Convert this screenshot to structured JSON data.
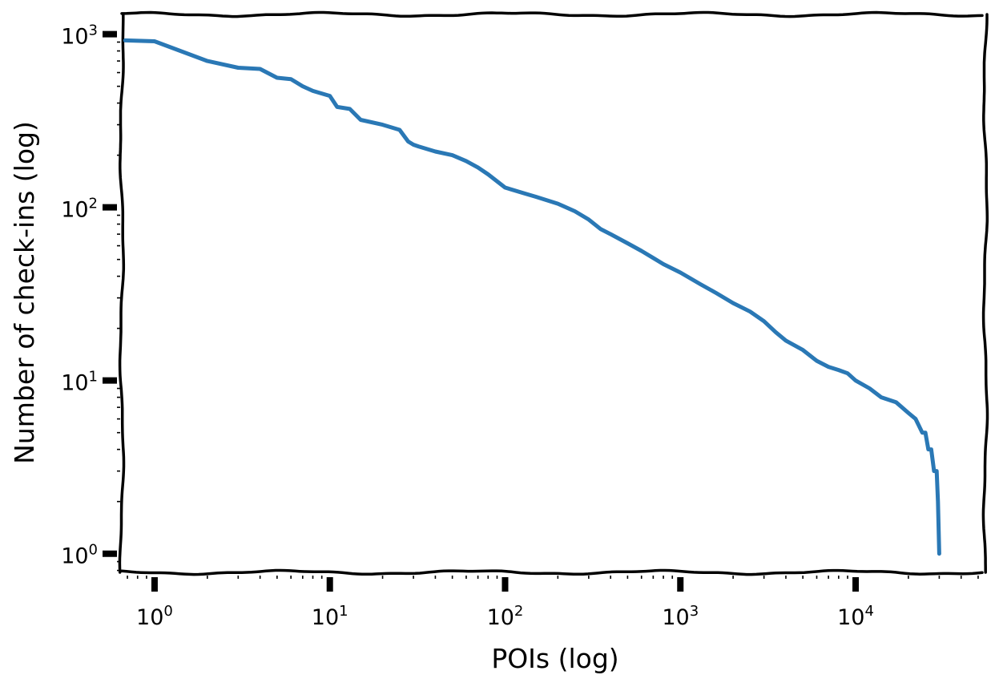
{
  "chart_data": {
    "type": "line",
    "title": "",
    "xlabel": "POIs (log)",
    "ylabel": "Number of check-ins (log)",
    "xscale": "log",
    "yscale": "log",
    "xlim": [
      0.65,
      55000
    ],
    "ylim": [
      0.78,
      1300
    ],
    "grid": false,
    "legend": "none",
    "style": "xkcd",
    "line_color": "#2a78b5",
    "x_ticks": [
      {
        "value": 1,
        "base": "10",
        "exp": "0"
      },
      {
        "value": 10,
        "base": "10",
        "exp": "1"
      },
      {
        "value": 100,
        "base": "10",
        "exp": "2"
      },
      {
        "value": 1000,
        "base": "10",
        "exp": "3"
      },
      {
        "value": 10000,
        "base": "10",
        "exp": "4"
      }
    ],
    "y_ticks": [
      {
        "value": 1,
        "base": "10",
        "exp": "0"
      },
      {
        "value": 10,
        "base": "10",
        "exp": "1"
      },
      {
        "value": 100,
        "base": "10",
        "exp": "2"
      },
      {
        "value": 1000,
        "base": "10",
        "exp": "3"
      }
    ],
    "series": [
      {
        "x": [
          0.68,
          1,
          2,
          3,
          4,
          5,
          6,
          7,
          8,
          10,
          11,
          13,
          15,
          20,
          25,
          28,
          30,
          32,
          40,
          50,
          60,
          70,
          80,
          100,
          130,
          150,
          200,
          250,
          300,
          350,
          400,
          500,
          600,
          700,
          800,
          1000,
          1300,
          1600,
          2000,
          2500,
          3000,
          3500,
          4000,
          5000,
          6000,
          7000,
          8000,
          9000,
          10000,
          12000,
          14000,
          17000,
          20000,
          22000,
          24000,
          25000,
          26000,
          27000,
          28000,
          29000,
          29500,
          30000
        ],
        "y": [
          920,
          910,
          700,
          640,
          630,
          560,
          550,
          500,
          470,
          440,
          380,
          370,
          320,
          300,
          280,
          240,
          230,
          225,
          210,
          200,
          185,
          170,
          155,
          130,
          120,
          115,
          105,
          95,
          85,
          75,
          70,
          62,
          56,
          51,
          47,
          42,
          36,
          32,
          28,
          25,
          22,
          19,
          17,
          15,
          13,
          12,
          11.5,
          11,
          10,
          9,
          8,
          7.5,
          6.5,
          6,
          5,
          5,
          4,
          4,
          3,
          3,
          2,
          1
        ]
      }
    ]
  }
}
